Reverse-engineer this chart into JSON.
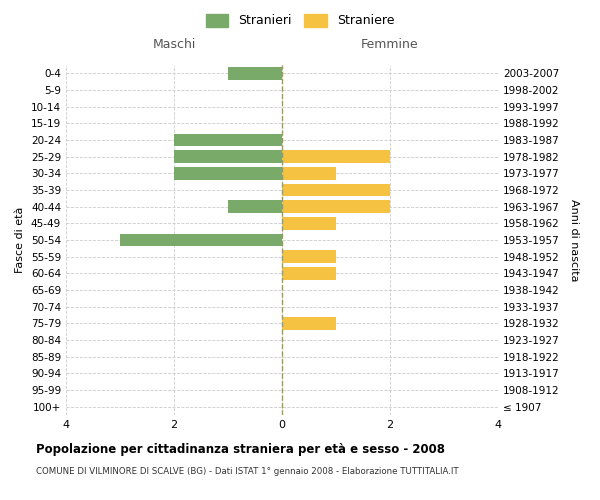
{
  "age_groups": [
    "100+",
    "95-99",
    "90-94",
    "85-89",
    "80-84",
    "75-79",
    "70-74",
    "65-69",
    "60-64",
    "55-59",
    "50-54",
    "45-49",
    "40-44",
    "35-39",
    "30-34",
    "25-29",
    "20-24",
    "15-19",
    "10-14",
    "5-9",
    "0-4"
  ],
  "birth_years": [
    "≤ 1907",
    "1908-1912",
    "1913-1917",
    "1918-1922",
    "1923-1927",
    "1928-1932",
    "1933-1937",
    "1938-1942",
    "1943-1947",
    "1948-1952",
    "1953-1957",
    "1958-1962",
    "1963-1967",
    "1968-1972",
    "1973-1977",
    "1978-1982",
    "1983-1987",
    "1988-1992",
    "1993-1997",
    "1998-2002",
    "2003-2007"
  ],
  "males": [
    0,
    0,
    0,
    0,
    0,
    0,
    0,
    0,
    0,
    0,
    3,
    0,
    1,
    0,
    2,
    2,
    2,
    0,
    0,
    0,
    1
  ],
  "females": [
    0,
    0,
    0,
    0,
    0,
    1,
    0,
    0,
    1,
    1,
    0,
    1,
    2,
    2,
    1,
    2,
    0,
    0,
    0,
    0,
    0
  ],
  "male_color": "#7aaa6a",
  "female_color": "#f5c242",
  "title": "Popolazione per cittadinanza straniera per età e sesso - 2008",
  "subtitle": "COMUNE DI VILMINORE DI SCALVE (BG) - Dati ISTAT 1° gennaio 2008 - Elaborazione TUTTITALIA.IT",
  "xlabel_left": "Maschi",
  "xlabel_right": "Femmine",
  "ylabel_left": "Fasce di età",
  "ylabel_right": "Anni di nascita",
  "legend_male": "Stranieri",
  "legend_female": "Straniere",
  "xlim": 4,
  "background_color": "#ffffff",
  "grid_color": "#cccccc",
  "bar_height": 0.75,
  "dashed_color": "#999966"
}
